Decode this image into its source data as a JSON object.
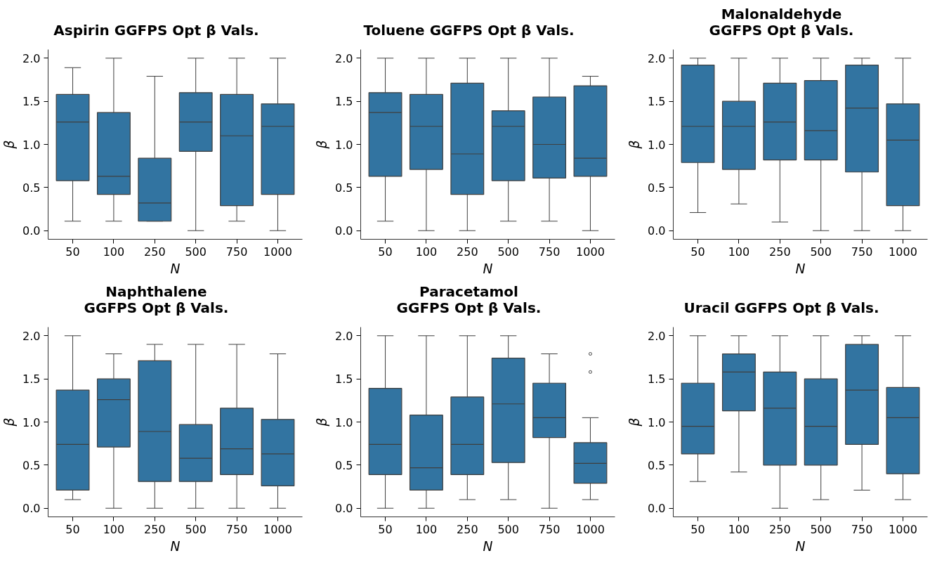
{
  "chart_data": [
    {
      "type": "box",
      "title": "Aspirin GGFPS Opt β Vals.",
      "xlabel": "N",
      "ylabel": "β",
      "color": "#3274a1",
      "categories": [
        "50",
        "100",
        "250",
        "500",
        "750",
        "1000"
      ],
      "ylim": [
        -0.1,
        2.1
      ],
      "yticks": [
        {
          "value": 0,
          "label": "0.0"
        },
        {
          "value": 0.5,
          "label": "0.5"
        },
        {
          "value": 1,
          "label": "1.0"
        },
        {
          "value": 1.5,
          "label": "1.5"
        },
        {
          "value": 2,
          "label": "2.0"
        }
      ],
      "boxes": [
        {
          "low": 0.11,
          "q1": 0.58,
          "median": 1.26,
          "q3": 1.58,
          "high": 1.89
        },
        {
          "low": 0.11,
          "q1": 0.42,
          "median": 0.63,
          "q3": 1.37,
          "high": 2.0
        },
        {
          "low": 0.11,
          "q1": 0.11,
          "median": 0.32,
          "q3": 0.84,
          "high": 1.79
        },
        {
          "low": 0.0,
          "q1": 0.92,
          "median": 1.26,
          "q3": 1.6,
          "high": 2.0
        },
        {
          "low": 0.11,
          "q1": 0.29,
          "median": 1.1,
          "q3": 1.58,
          "high": 2.0
        },
        {
          "low": 0.0,
          "q1": 0.42,
          "median": 1.21,
          "q3": 1.47,
          "high": 2.0
        }
      ]
    },
    {
      "type": "box",
      "title": "Toluene GGFPS Opt β Vals.",
      "xlabel": "N",
      "ylabel": "β",
      "color": "#3274a1",
      "categories": [
        "50",
        "100",
        "250",
        "500",
        "750",
        "1000"
      ],
      "ylim": [
        -0.1,
        2.1
      ],
      "yticks": [
        {
          "value": 0,
          "label": "0.0"
        },
        {
          "value": 0.5,
          "label": "0.5"
        },
        {
          "value": 1,
          "label": "1.0"
        },
        {
          "value": 1.5,
          "label": "1.5"
        },
        {
          "value": 2,
          "label": "2.0"
        }
      ],
      "boxes": [
        {
          "low": 0.11,
          "q1": 0.63,
          "median": 1.37,
          "q3": 1.6,
          "high": 2.0
        },
        {
          "low": 0.0,
          "q1": 0.71,
          "median": 1.21,
          "q3": 1.58,
          "high": 2.0
        },
        {
          "low": 0.0,
          "q1": 0.42,
          "median": 0.89,
          "q3": 1.71,
          "high": 2.0
        },
        {
          "low": 0.11,
          "q1": 0.58,
          "median": 1.21,
          "q3": 1.39,
          "high": 2.0
        },
        {
          "low": 0.11,
          "q1": 0.61,
          "median": 1.0,
          "q3": 1.55,
          "high": 2.0
        },
        {
          "low": 0.0,
          "q1": 0.63,
          "median": 0.84,
          "q3": 1.68,
          "high": 1.79
        }
      ]
    },
    {
      "type": "box",
      "title": "Malonaldehyde\nGGFPS Opt β Vals.",
      "xlabel": "N",
      "ylabel": "β",
      "color": "#3274a1",
      "categories": [
        "50",
        "100",
        "250",
        "500",
        "750",
        "1000"
      ],
      "ylim": [
        -0.1,
        2.1
      ],
      "yticks": [
        {
          "value": 0,
          "label": "0.0"
        },
        {
          "value": 0.5,
          "label": "0.5"
        },
        {
          "value": 1,
          "label": "1.0"
        },
        {
          "value": 1.5,
          "label": "1.5"
        },
        {
          "value": 2,
          "label": "2.0"
        }
      ],
      "boxes": [
        {
          "low": 0.21,
          "q1": 0.79,
          "median": 1.21,
          "q3": 1.92,
          "high": 2.0
        },
        {
          "low": 0.31,
          "q1": 0.71,
          "median": 1.21,
          "q3": 1.5,
          "high": 2.0
        },
        {
          "low": 0.1,
          "q1": 0.82,
          "median": 1.26,
          "q3": 1.71,
          "high": 2.0
        },
        {
          "low": 0.0,
          "q1": 0.82,
          "median": 1.16,
          "q3": 1.74,
          "high": 2.0
        },
        {
          "low": 0.0,
          "q1": 0.68,
          "median": 1.42,
          "q3": 1.92,
          "high": 2.0
        },
        {
          "low": 0.0,
          "q1": 0.29,
          "median": 1.05,
          "q3": 1.47,
          "high": 2.0
        }
      ]
    },
    {
      "type": "box",
      "title": "Naphthalene\nGGFPS Opt β Vals.",
      "xlabel": "N",
      "ylabel": "β",
      "color": "#3274a1",
      "categories": [
        "50",
        "100",
        "250",
        "500",
        "750",
        "1000"
      ],
      "ylim": [
        -0.1,
        2.1
      ],
      "yticks": [
        {
          "value": 0,
          "label": "0.0"
        },
        {
          "value": 0.5,
          "label": "0.5"
        },
        {
          "value": 1,
          "label": "1.0"
        },
        {
          "value": 1.5,
          "label": "1.5"
        },
        {
          "value": 2,
          "label": "2.0"
        }
      ],
      "boxes": [
        {
          "low": 0.1,
          "q1": 0.21,
          "median": 0.74,
          "q3": 1.37,
          "high": 2.0
        },
        {
          "low": 0.0,
          "q1": 0.71,
          "median": 1.26,
          "q3": 1.5,
          "high": 1.79
        },
        {
          "low": 0.0,
          "q1": 0.31,
          "median": 0.89,
          "q3": 1.71,
          "high": 1.9
        },
        {
          "low": 0.0,
          "q1": 0.31,
          "median": 0.58,
          "q3": 0.97,
          "high": 1.9
        },
        {
          "low": 0.0,
          "q1": 0.39,
          "median": 0.69,
          "q3": 1.16,
          "high": 1.9
        },
        {
          "low": 0.0,
          "q1": 0.26,
          "median": 0.63,
          "q3": 1.03,
          "high": 1.79
        }
      ]
    },
    {
      "type": "box",
      "title": "Paracetamol\nGGFPS Opt β Vals.",
      "xlabel": "N",
      "ylabel": "β",
      "color": "#3274a1",
      "categories": [
        "50",
        "100",
        "250",
        "500",
        "750",
        "1000"
      ],
      "ylim": [
        -0.1,
        2.1
      ],
      "yticks": [
        {
          "value": 0,
          "label": "0.0"
        },
        {
          "value": 0.5,
          "label": "0.5"
        },
        {
          "value": 1,
          "label": "1.0"
        },
        {
          "value": 1.5,
          "label": "1.5"
        },
        {
          "value": 2,
          "label": "2.0"
        }
      ],
      "boxes": [
        {
          "low": 0.0,
          "q1": 0.39,
          "median": 0.74,
          "q3": 1.39,
          "high": 2.0
        },
        {
          "low": 0.0,
          "q1": 0.21,
          "median": 0.47,
          "q3": 1.08,
          "high": 2.0
        },
        {
          "low": 0.1,
          "q1": 0.39,
          "median": 0.74,
          "q3": 1.29,
          "high": 2.0
        },
        {
          "low": 0.1,
          "q1": 0.53,
          "median": 1.21,
          "q3": 1.74,
          "high": 2.0
        },
        {
          "low": 0.0,
          "q1": 0.82,
          "median": 1.05,
          "q3": 1.45,
          "high": 1.79
        },
        {
          "low": 0.1,
          "q1": 0.29,
          "median": 0.52,
          "q3": 0.76,
          "high": 1.05,
          "outliers": [
            1.58,
            1.79
          ]
        }
      ]
    },
    {
      "type": "box",
      "title": "Uracil GGFPS Opt β Vals.",
      "xlabel": "N",
      "ylabel": "β",
      "color": "#3274a1",
      "categories": [
        "50",
        "100",
        "250",
        "500",
        "750",
        "1000"
      ],
      "ylim": [
        -0.1,
        2.1
      ],
      "yticks": [
        {
          "value": 0,
          "label": "0.0"
        },
        {
          "value": 0.5,
          "label": "0.5"
        },
        {
          "value": 1,
          "label": "1.0"
        },
        {
          "value": 1.5,
          "label": "1.5"
        },
        {
          "value": 2,
          "label": "2.0"
        }
      ],
      "boxes": [
        {
          "low": 0.31,
          "q1": 0.63,
          "median": 0.95,
          "q3": 1.45,
          "high": 2.0
        },
        {
          "low": 0.42,
          "q1": 1.13,
          "median": 1.58,
          "q3": 1.79,
          "high": 2.0
        },
        {
          "low": 0.0,
          "q1": 0.5,
          "median": 1.16,
          "q3": 1.58,
          "high": 2.0
        },
        {
          "low": 0.1,
          "q1": 0.5,
          "median": 0.95,
          "q3": 1.5,
          "high": 2.0
        },
        {
          "low": 0.21,
          "q1": 0.74,
          "median": 1.37,
          "q3": 1.9,
          "high": 2.0
        },
        {
          "low": 0.1,
          "q1": 0.4,
          "median": 1.05,
          "q3": 1.4,
          "high": 2.0
        }
      ]
    }
  ]
}
